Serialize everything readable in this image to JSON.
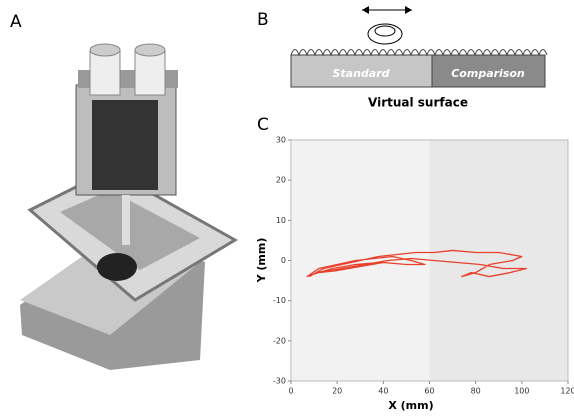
{
  "panels": {
    "a": "A",
    "b": "B",
    "c": "C"
  },
  "diagram": {
    "standard": "Standard",
    "comparison": "Comparison",
    "caption": "Virtual surface"
  },
  "chart_data": {
    "type": "line",
    "xlabel": "X (mm)",
    "ylabel": "Y (mm)",
    "xlim": [
      0,
      120
    ],
    "ylim": [
      -30,
      30
    ],
    "xticks": [
      0,
      20,
      40,
      60,
      80,
      100,
      120
    ],
    "yticks": [
      30,
      20,
      10,
      0,
      -10,
      -20,
      -30
    ],
    "regions": [
      {
        "xlim": [
          0,
          60
        ],
        "color": "#f2f2f2"
      },
      {
        "xlim": [
          60,
          120
        ],
        "color": "#e8e8e8"
      }
    ],
    "series": [
      {
        "color": "#e8402a",
        "x": [
          8,
          14,
          22,
          30,
          38,
          46,
          54,
          62,
          70,
          80,
          90,
          100,
          96,
          86,
          80,
          74,
          78,
          86,
          95,
          102,
          92,
          82,
          72,
          62,
          52,
          42,
          32,
          22,
          12,
          7,
          12,
          20,
          28,
          36,
          44,
          52,
          58,
          50,
          40,
          30,
          20,
          12,
          18,
          28,
          38
        ],
        "y": [
          -4,
          -2,
          -1,
          0,
          1,
          1.5,
          2,
          2,
          2.5,
          2,
          2,
          1,
          0,
          -1,
          -3,
          -4,
          -3,
          -4,
          -3,
          -2,
          -2,
          -1,
          -0.5,
          0,
          0.5,
          0,
          -1,
          -2,
          -3,
          -4,
          -2,
          -1,
          0,
          0.5,
          1,
          0,
          -1,
          -1,
          -0.5,
          -1.5,
          -2.5,
          -3,
          -2,
          -1,
          -0.5
        ]
      }
    ]
  }
}
